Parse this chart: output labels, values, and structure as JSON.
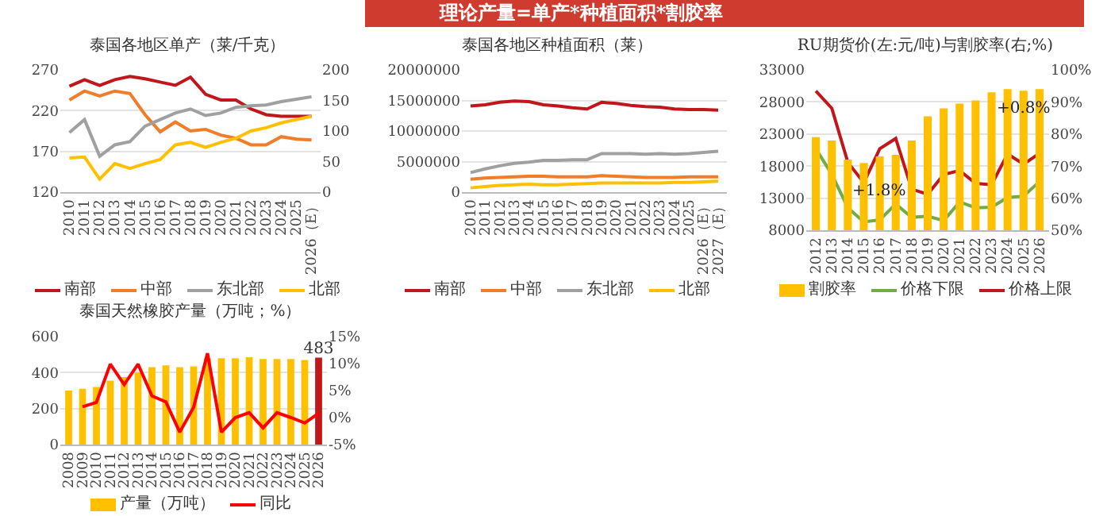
{
  "chart_data": [
    {
      "type": "other",
      "title": "理论产量=单产*种植面积*割胶率",
      "color": "#d03b2f"
    },
    {
      "type": "line",
      "title": "泰国各地区单产（莱/千克）",
      "categories": [
        "2010",
        "2011",
        "2012",
        "2013",
        "2014",
        "2015",
        "2016",
        "2017",
        "2018",
        "2019",
        "2020",
        "2021",
        "2022",
        "2023",
        "2024",
        "2025",
        "2026（E）"
      ],
      "series": [
        {
          "name": "南部",
          "color": "#c0161c",
          "values": [
            250,
            258,
            251,
            258,
            262,
            259,
            255,
            251,
            261,
            240,
            233,
            233,
            222,
            215,
            213,
            213,
            213
          ]
        },
        {
          "name": "中部",
          "color": "#f07d2a",
          "values": [
            233,
            244,
            238,
            244,
            241,
            215,
            194,
            206,
            195,
            197,
            190,
            186,
            178,
            178,
            188,
            185,
            184
          ]
        },
        {
          "name": "东北部",
          "color": "#a0a0a0",
          "values": [
            193,
            209,
            164,
            178,
            182,
            201,
            209,
            217,
            222,
            214,
            217,
            224,
            226,
            227,
            231,
            234,
            237
          ]
        },
        {
          "name": "北部",
          "color": "#ffc000",
          "values": [
            162,
            163,
            136,
            155,
            149,
            155,
            160,
            178,
            181,
            175,
            181,
            186,
            195,
            199,
            205,
            209,
            213
          ]
        }
      ],
      "ylim": [
        120,
        270
      ],
      "yticks": [
        120,
        170,
        220,
        270
      ],
      "y2lim": [
        0,
        200
      ],
      "y2ticks": [
        0,
        50,
        100,
        150,
        200
      ],
      "grid": "y",
      "legend": "bottom",
      "marker": "none",
      "line_style": "solid"
    },
    {
      "type": "line",
      "title": "泰国各地区种植面积（莱）",
      "categories": [
        "2010",
        "2011",
        "2012",
        "2013",
        "2014",
        "2015",
        "2016",
        "2017",
        "2018",
        "2019",
        "2020",
        "2021",
        "2022",
        "2023",
        "2024",
        "2025",
        "2026（E）",
        "2027（E）"
      ],
      "series": [
        {
          "name": "南部",
          "color": "#c0161c",
          "values": [
            14100000,
            14300000,
            14700000,
            14900000,
            14800000,
            14300000,
            14100000,
            13800000,
            13600000,
            14700000,
            14500000,
            14200000,
            14000000,
            13900000,
            13600000,
            13500000,
            13500000,
            13400000
          ]
        },
        {
          "name": "中部",
          "color": "#f07d2a",
          "values": [
            2100000,
            2300000,
            2400000,
            2500000,
            2600000,
            2600000,
            2500000,
            2500000,
            2500000,
            2700000,
            2600000,
            2500000,
            2400000,
            2400000,
            2400000,
            2500000,
            2500000,
            2500000
          ]
        },
        {
          "name": "东北部",
          "color": "#a0a0a0",
          "values": [
            3200000,
            3800000,
            4300000,
            4700000,
            4900000,
            5200000,
            5200000,
            5300000,
            5300000,
            6300000,
            6300000,
            6300000,
            6200000,
            6300000,
            6200000,
            6300000,
            6500000,
            6700000
          ]
        },
        {
          "name": "北部",
          "color": "#ffc000",
          "values": [
            700000,
            900000,
            1100000,
            1200000,
            1300000,
            1200000,
            1200000,
            1300000,
            1400000,
            1500000,
            1500000,
            1500000,
            1500000,
            1500000,
            1600000,
            1600000,
            1700000,
            1800000
          ]
        }
      ],
      "ylim": [
        0,
        20000000
      ],
      "yticks": [
        0,
        5000000,
        10000000,
        15000000,
        20000000
      ],
      "grid": "y",
      "legend": "bottom",
      "marker": "none",
      "line_style": "solid"
    },
    {
      "type": "line",
      "title": "RU期货价(左:元/吨)与割胶率(右;%)",
      "categories": [
        "2012",
        "2013",
        "2014",
        "2015",
        "2016",
        "2017",
        "2018",
        "2019",
        "2020",
        "2021",
        "2022",
        "2023",
        "2024",
        "2025",
        "2026"
      ],
      "series": [
        {
          "name": "割胶率",
          "type": "bar",
          "axis": "y2",
          "color": "#ffc000",
          "values": [
            79,
            78,
            72,
            71,
            73,
            73.5,
            78,
            85.5,
            88,
            89.5,
            90.5,
            93,
            94,
            93.5,
            94
          ]
        },
        {
          "name": "价格下限",
          "color": "#70ad47",
          "values": [
            20700,
            16700,
            11500,
            9300,
            9600,
            12100,
            10000,
            10200,
            9500,
            12400,
            11500,
            11600,
            13100,
            13300,
            15600
          ]
        },
        {
          "name": "价格上限",
          "color": "#c0161c",
          "values": [
            29700,
            27000,
            18600,
            15400,
            20700,
            22300,
            14400,
            13600,
            16700,
            17300,
            15300,
            15100,
            19900,
            18300,
            20000
          ]
        }
      ],
      "ylim": [
        8000,
        33000
      ],
      "yticks": [
        8000,
        13000,
        18000,
        23000,
        28000,
        33000
      ],
      "y2lim": [
        50,
        100
      ],
      "y2ticks": [
        {
          "value": 50,
          "label": "50%"
        },
        {
          "value": 60,
          "label": "60%"
        },
        {
          "value": 70,
          "label": "70%"
        },
        {
          "value": 80,
          "label": "80%"
        },
        {
          "value": 90,
          "label": "90%"
        },
        {
          "value": 100,
          "label": "100%"
        }
      ],
      "annotations": [
        {
          "text": "+1.8%",
          "x": "2016",
          "y": 14000
        },
        {
          "text": "+0.8%",
          "x": "2025",
          "y": 27000
        }
      ],
      "grid": "y",
      "legend": "bottom",
      "marker": "none",
      "line_style": "solid"
    },
    {
      "type": "bar",
      "title": "泰国天然橡胶产量（万吨；%）",
      "categories": [
        "2008",
        "2009",
        "2010",
        "2011",
        "2012",
        "2013",
        "2014",
        "2015",
        "2016",
        "2017",
        "2018",
        "2019",
        "2020",
        "2021",
        "2022",
        "2023",
        "2024",
        "2025",
        "2026"
      ],
      "series": [
        {
          "name": "产量（万吨）",
          "color": "#ffc000",
          "colors": [
            "#ffc000",
            "#ffc000",
            "#ffc000",
            "#ffc000",
            "#ffc000",
            "#ffc000",
            "#ffc000",
            "#ffc000",
            "#ffc000",
            "#ffc000",
            "#ffc000",
            "#ffc000",
            "#ffc000",
            "#ffc000",
            "#ffc000",
            "#ffc000",
            "#ffc000",
            "#ffc000",
            "#c0161c"
          ],
          "values": [
            300,
            310,
            320,
            355,
            375,
            400,
            430,
            440,
            430,
            435,
            480,
            480,
            480,
            485,
            475,
            475,
            475,
            470,
            483
          ],
          "value_labels": [
            null,
            null,
            null,
            null,
            null,
            null,
            null,
            null,
            null,
            null,
            null,
            null,
            null,
            null,
            null,
            null,
            null,
            null,
            "483"
          ]
        },
        {
          "name": "同比",
          "type": "line",
          "axis": "y2",
          "color": "#ff0000",
          "values": [
            null,
            2.0,
            2.8,
            9.9,
            6.1,
            9.9,
            4.0,
            2.9,
            -2.7,
            1.9,
            11.9,
            -2.7,
            0,
            0.9,
            -1.9,
            0.9,
            0,
            -1.0,
            0.8
          ]
        }
      ],
      "ylim": [
        0,
        600
      ],
      "yticks": [
        0,
        200,
        400,
        600
      ],
      "y2lim": [
        -5,
        15
      ],
      "y2ticks": [
        {
          "value": -5,
          "label": "-5%"
        },
        {
          "value": 0,
          "label": "0%"
        },
        {
          "value": 5,
          "label": "5%"
        },
        {
          "value": 10,
          "label": "10%"
        },
        {
          "value": 15,
          "label": "15%"
        }
      ],
      "grid": "y",
      "legend": "bottom",
      "marker": "none",
      "line_style": "solid"
    }
  ]
}
